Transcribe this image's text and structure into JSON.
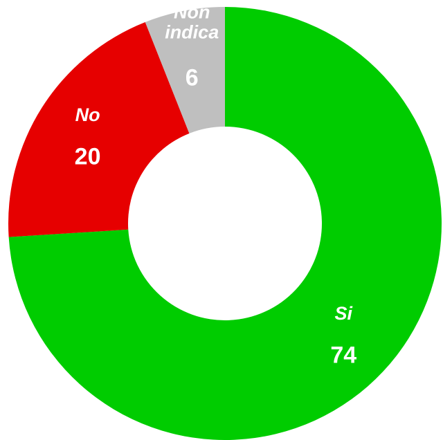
{
  "chart_data": {
    "type": "donut",
    "categories": [
      "Si",
      "No",
      "Non indica"
    ],
    "values": [
      74,
      20,
      6
    ],
    "colors": [
      "#00cc00",
      "#e60000",
      "#bfbfbf"
    ]
  }
}
